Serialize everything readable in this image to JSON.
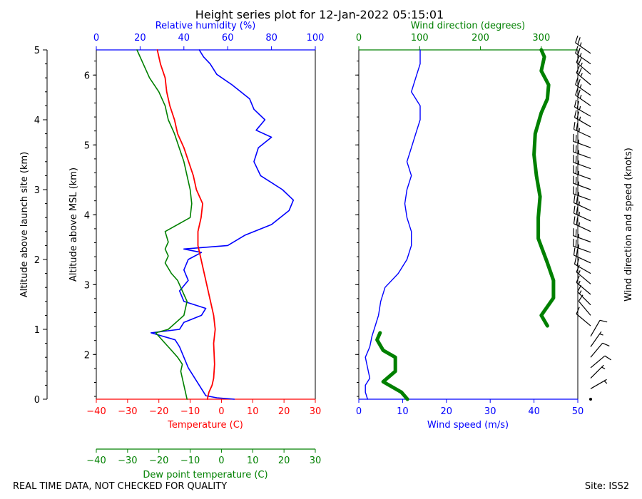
{
  "colors": {
    "temperature": "#ff0000",
    "dewpoint": "#008000",
    "humidity": "#0000ff",
    "wind_speed": "#0000ff",
    "wind_direction": "#008000",
    "barbs": "#000000"
  },
  "footer": {
    "left_note": "REAL TIME DATA, NOT CHECKED FOR QUALITY",
    "site": "Site: ISS2"
  },
  "chart_data": [
    {
      "type": "line",
      "panel": "thermodynamic",
      "title": "Height series plot for 12-Jan-2022 05:15:01",
      "left_axis": {
        "label": "Altitude above launch site (km)",
        "ylim": [
          0,
          5
        ],
        "ticks": [
          "0",
          "1",
          "2",
          "3",
          "4",
          "5"
        ]
      },
      "msl_axis": {
        "label": "Altitude above MSL (km)",
        "ylim": [
          1.36,
          6.36
        ],
        "ticks": [
          "2",
          "3",
          "4",
          "5",
          "6"
        ]
      },
      "bottom_axis": {
        "label": "Temperature (C)",
        "xlim": [
          -40,
          30
        ],
        "ticks": [
          "−40",
          "−30",
          "−20",
          "−10",
          "0",
          "10",
          "20",
          "30"
        ]
      },
      "bottom_axis2": {
        "label": "Dew point temperature (C)",
        "xlim": [
          -40,
          30
        ],
        "ticks": [
          "−40",
          "−30",
          "−20",
          "−10",
          "0",
          "10",
          "20",
          "30"
        ]
      },
      "top_axis": {
        "label": "Relative humidity (%)",
        "xlim": [
          0,
          100
        ],
        "ticks": [
          "0",
          "20",
          "40",
          "60",
          "80",
          "100"
        ]
      },
      "series": [
        {
          "name": "Temperature",
          "axis": "temperature",
          "points": [
            [
              -4.5,
              0
            ],
            [
              -4,
              0.1
            ],
            [
              -3,
              0.2
            ],
            [
              -2.5,
              0.3
            ],
            [
              -2.2,
              0.5
            ],
            [
              -2.5,
              0.8
            ],
            [
              -2,
              1.0
            ],
            [
              -2.5,
              1.2
            ],
            [
              -3.5,
              1.4
            ],
            [
              -4.5,
              1.6
            ],
            [
              -5.5,
              1.8
            ],
            [
              -6.5,
              2.0
            ],
            [
              -7.5,
              2.2
            ],
            [
              -7.5,
              2.4
            ],
            [
              -6.5,
              2.6
            ],
            [
              -6,
              2.8
            ],
            [
              -8,
              3.0
            ],
            [
              -9,
              3.2
            ],
            [
              -10.5,
              3.4
            ],
            [
              -12,
              3.6
            ],
            [
              -14,
              3.8
            ],
            [
              -15,
              4.0
            ],
            [
              -16.5,
              4.2
            ],
            [
              -17.5,
              4.4
            ],
            [
              -18,
              4.6
            ],
            [
              -19.5,
              4.8
            ],
            [
              -20.5,
              5.0
            ]
          ]
        },
        {
          "name": "Dew point",
          "axis": "dewpoint",
          "points": [
            [
              -11,
              0
            ],
            [
              -11.5,
              0.1
            ],
            [
              -12,
              0.2
            ],
            [
              -13,
              0.4
            ],
            [
              -12.5,
              0.5
            ],
            [
              -14,
              0.6
            ],
            [
              -16,
              0.7
            ],
            [
              -18,
              0.8
            ],
            [
              -21,
              0.95
            ],
            [
              -17,
              1.0
            ],
            [
              -12,
              1.2
            ],
            [
              -11,
              1.4
            ],
            [
              -12,
              1.5
            ],
            [
              -14,
              1.7
            ],
            [
              -16,
              1.8
            ],
            [
              -18,
              1.95
            ],
            [
              -17,
              2.05
            ],
            [
              -18,
              2.15
            ],
            [
              -17,
              2.25
            ],
            [
              -18,
              2.4
            ],
            [
              -10,
              2.6
            ],
            [
              -9.5,
              2.8
            ],
            [
              -10,
              3.0
            ],
            [
              -11,
              3.2
            ],
            [
              -12,
              3.4
            ],
            [
              -13.5,
              3.6
            ],
            [
              -15,
              3.8
            ],
            [
              -17,
              4.0
            ],
            [
              -18,
              4.2
            ],
            [
              -20,
              4.4
            ],
            [
              -23,
              4.6
            ],
            [
              -25,
              4.8
            ],
            [
              -27,
              5.0
            ]
          ]
        },
        {
          "name": "Relative humidity",
          "axis": "humidity",
          "points": [
            [
              63,
              0
            ],
            [
              55,
              0.02
            ],
            [
              50,
              0.05
            ],
            [
              48,
              0.15
            ],
            [
              45,
              0.3
            ],
            [
              42,
              0.45
            ],
            [
              40,
              0.6
            ],
            [
              38,
              0.75
            ],
            [
              36,
              0.85
            ],
            [
              25,
              0.95
            ],
            [
              38,
              1.0
            ],
            [
              40,
              1.1
            ],
            [
              48,
              1.2
            ],
            [
              50,
              1.3
            ],
            [
              40,
              1.4
            ],
            [
              38,
              1.55
            ],
            [
              42,
              1.7
            ],
            [
              40,
              1.85
            ],
            [
              42,
              2.0
            ],
            [
              48,
              2.1
            ],
            [
              40,
              2.15
            ],
            [
              60,
              2.2
            ],
            [
              68,
              2.35
            ],
            [
              80,
              2.5
            ],
            [
              88,
              2.7
            ],
            [
              90,
              2.85
            ],
            [
              85,
              3.0
            ],
            [
              75,
              3.2
            ],
            [
              72,
              3.4
            ],
            [
              74,
              3.6
            ],
            [
              80,
              3.75
            ],
            [
              73,
              3.85
            ],
            [
              77,
              4.0
            ],
            [
              72,
              4.15
            ],
            [
              70,
              4.3
            ],
            [
              62,
              4.5
            ],
            [
              55,
              4.65
            ],
            [
              52,
              4.8
            ],
            [
              49,
              4.9
            ],
            [
              47,
              5.0
            ]
          ]
        }
      ]
    },
    {
      "type": "line",
      "panel": "wind",
      "bottom_axis": {
        "label": "Wind speed (m/s)",
        "xlim": [
          0,
          50
        ],
        "ticks": [
          "0",
          "10",
          "20",
          "30",
          "40",
          "50"
        ]
      },
      "top_axis": {
        "label": "Wind direction (degrees)",
        "xlim": [
          0,
          360
        ],
        "ticks": [
          "0",
          "100",
          "200",
          "300"
        ]
      },
      "barbs_label": "Wind direction and speed (knots)",
      "series": [
        {
          "name": "Wind speed",
          "axis": "wind_speed",
          "points": [
            [
              2,
              0
            ],
            [
              1.5,
              0.1
            ],
            [
              1.5,
              0.2
            ],
            [
              2.5,
              0.3
            ],
            [
              2,
              0.45
            ],
            [
              1.5,
              0.6
            ],
            [
              2.5,
              0.75
            ],
            [
              3,
              0.9
            ],
            [
              3.5,
              1.0
            ],
            [
              4.5,
              1.2
            ],
            [
              5,
              1.4
            ],
            [
              6,
              1.6
            ],
            [
              9,
              1.8
            ],
            [
              11,
              2.0
            ],
            [
              12,
              2.2
            ],
            [
              12,
              2.4
            ],
            [
              11,
              2.6
            ],
            [
              10.5,
              2.8
            ],
            [
              11,
              3.0
            ],
            [
              12,
              3.2
            ],
            [
              11,
              3.4
            ],
            [
              12,
              3.6
            ],
            [
              13,
              3.8
            ],
            [
              14,
              4.0
            ],
            [
              14,
              4.2
            ],
            [
              12,
              4.4
            ],
            [
              13,
              4.6
            ],
            [
              14,
              4.8
            ],
            [
              14,
              5.0
            ]
          ]
        },
        {
          "name": "Wind direction",
          "axis": "wind_direction",
          "points": [
            [
              80,
              0
            ],
            [
              70,
              0.1
            ],
            [
              40,
              0.25
            ],
            [
              60,
              0.4
            ],
            [
              60,
              0.6
            ],
            [
              40,
              0.7
            ],
            [
              30,
              0.85
            ],
            [
              35,
              0.95
            ],
            [
              310,
              1.05
            ],
            [
              300,
              1.2
            ],
            [
              320,
              1.45
            ],
            [
              320,
              1.7
            ],
            [
              310,
              1.95
            ],
            [
              295,
              2.3
            ],
            [
              295,
              2.6
            ],
            [
              298,
              2.9
            ],
            [
              292,
              3.2
            ],
            [
              288,
              3.5
            ],
            [
              290,
              3.8
            ],
            [
              300,
              4.1
            ],
            [
              310,
              4.3
            ],
            [
              312,
              4.5
            ],
            [
              300,
              4.7
            ],
            [
              305,
              4.9
            ],
            [
              300,
              5.0
            ]
          ]
        }
      ],
      "barbs": [
        {
          "alt": 0.0,
          "dir": 60,
          "kt": 0
        },
        {
          "alt": 0.15,
          "dir": 60,
          "kt": 5
        },
        {
          "alt": 0.3,
          "dir": 45,
          "kt": 5
        },
        {
          "alt": 0.45,
          "dir": 50,
          "kt": 10
        },
        {
          "alt": 0.6,
          "dir": 40,
          "kt": 10
        },
        {
          "alt": 0.75,
          "dir": 35,
          "kt": 5
        },
        {
          "alt": 0.9,
          "dir": 30,
          "kt": 10
        },
        {
          "alt": 1.05,
          "dir": 310,
          "kt": 10
        },
        {
          "alt": 1.2,
          "dir": 320,
          "kt": 10
        },
        {
          "alt": 1.35,
          "dir": 315,
          "kt": 15
        },
        {
          "alt": 1.5,
          "dir": 310,
          "kt": 15
        },
        {
          "alt": 1.65,
          "dir": 310,
          "kt": 15
        },
        {
          "alt": 1.8,
          "dir": 300,
          "kt": 20
        },
        {
          "alt": 1.95,
          "dir": 295,
          "kt": 20
        },
        {
          "alt": 2.1,
          "dir": 290,
          "kt": 25
        },
        {
          "alt": 2.25,
          "dir": 290,
          "kt": 25
        },
        {
          "alt": 2.4,
          "dir": 295,
          "kt": 25
        },
        {
          "alt": 2.55,
          "dir": 295,
          "kt": 25
        },
        {
          "alt": 2.7,
          "dir": 295,
          "kt": 25
        },
        {
          "alt": 2.85,
          "dir": 290,
          "kt": 25
        },
        {
          "alt": 3.0,
          "dir": 290,
          "kt": 25
        },
        {
          "alt": 3.15,
          "dir": 290,
          "kt": 25
        },
        {
          "alt": 3.3,
          "dir": 290,
          "kt": 25
        },
        {
          "alt": 3.45,
          "dir": 290,
          "kt": 25
        },
        {
          "alt": 3.6,
          "dir": 290,
          "kt": 25
        },
        {
          "alt": 3.75,
          "dir": 295,
          "kt": 25
        },
        {
          "alt": 3.9,
          "dir": 300,
          "kt": 25
        },
        {
          "alt": 4.05,
          "dir": 300,
          "kt": 25
        },
        {
          "alt": 4.2,
          "dir": 305,
          "kt": 25
        },
        {
          "alt": 4.35,
          "dir": 305,
          "kt": 25
        },
        {
          "alt": 4.5,
          "dir": 310,
          "kt": 25
        },
        {
          "alt": 4.65,
          "dir": 310,
          "kt": 25
        },
        {
          "alt": 4.8,
          "dir": 305,
          "kt": 25
        },
        {
          "alt": 4.95,
          "dir": 305,
          "kt": 25
        }
      ]
    }
  ]
}
